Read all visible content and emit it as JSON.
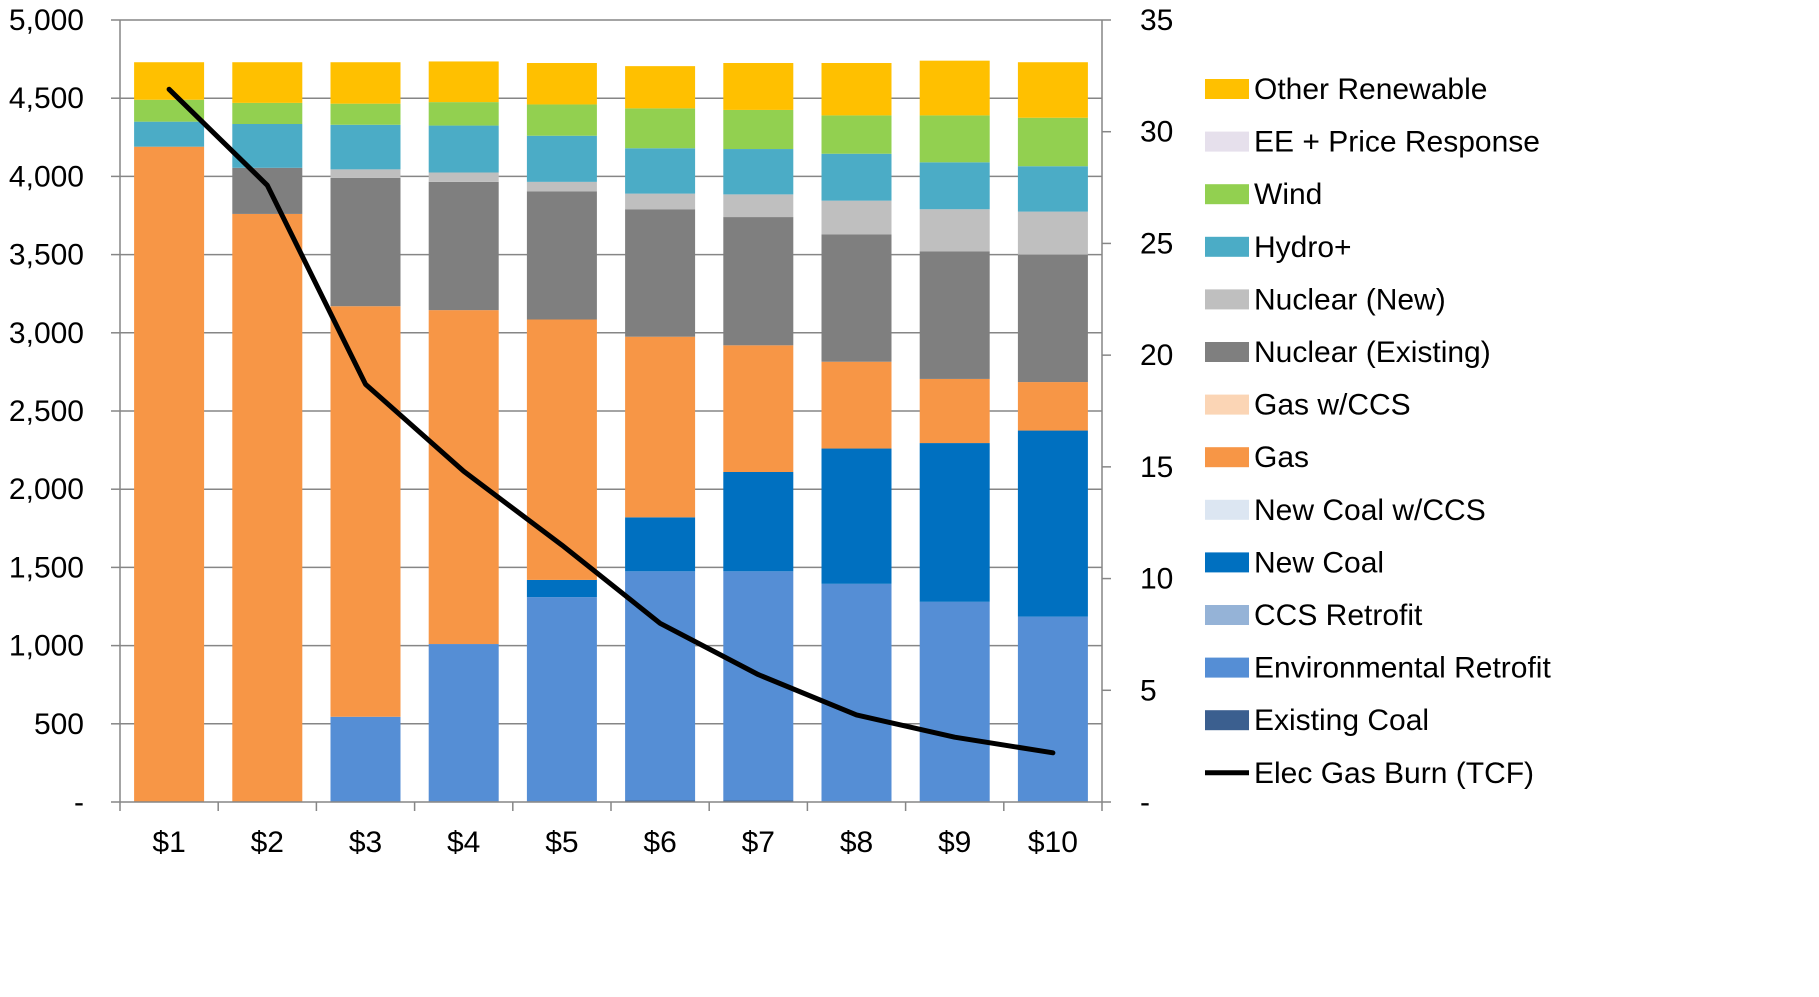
{
  "chart_data": {
    "type": "bar",
    "stacked": true,
    "categories": [
      "$1",
      "$2",
      "$3",
      "$4",
      "$5",
      "$6",
      "$7",
      "$8",
      "$9",
      "$10"
    ],
    "y_left": {
      "min": 0,
      "max": 5000,
      "ticks": [
        "-",
        "500",
        "1,000",
        "1,500",
        "2,000",
        "2,500",
        "3,000",
        "3,500",
        "4,000",
        "4,500",
        "5,000"
      ]
    },
    "y_right": {
      "min": 0,
      "max": 35,
      "ticks": [
        "-",
        "5",
        "10",
        "15",
        "20",
        "25",
        "30",
        "35"
      ]
    },
    "grid": true,
    "legend_position": "right",
    "series": [
      {
        "name": "Existing Coal",
        "color": "#3b5f8f",
        "values": [
          0,
          0,
          0,
          5,
          5,
          10,
          10,
          5,
          5,
          5
        ]
      },
      {
        "name": "Environmental Retrofit",
        "color": "#558ed5",
        "values": [
          0,
          0,
          545,
          1005,
          1305,
          1465,
          1465,
          1390,
          1275,
          1180
        ]
      },
      {
        "name": "CCS Retrofit",
        "color": "#95b3d7",
        "values": [
          0,
          0,
          0,
          0,
          0,
          0,
          0,
          0,
          0,
          0
        ]
      },
      {
        "name": "New Coal",
        "color": "#0070c0",
        "values": [
          0,
          0,
          0,
          0,
          110,
          345,
          635,
          865,
          1015,
          1190
        ]
      },
      {
        "name": "New Coal w/CCS",
        "color": "#dce6f2",
        "values": [
          0,
          0,
          0,
          0,
          0,
          0,
          0,
          0,
          0,
          0
        ]
      },
      {
        "name": "Gas",
        "color": "#f79646",
        "values": [
          4190,
          3760,
          2625,
          2135,
          1665,
          1155,
          810,
          555,
          410,
          310
        ]
      },
      {
        "name": "Gas w/CCS",
        "color": "#fbd5b5",
        "values": [
          0,
          0,
          0,
          0,
          0,
          0,
          0,
          0,
          0,
          0
        ]
      },
      {
        "name": "Nuclear (Existing)",
        "color": "#7f7f7f",
        "values": [
          0,
          295,
          820,
          820,
          820,
          815,
          820,
          815,
          815,
          815
        ]
      },
      {
        "name": "Nuclear (New)",
        "color": "#bfbfbf",
        "values": [
          0,
          0,
          55,
          60,
          60,
          100,
          145,
          215,
          270,
          275
        ]
      },
      {
        "name": "Hydro+",
        "color": "#4bacc6",
        "values": [
          160,
          280,
          285,
          300,
          295,
          290,
          290,
          300,
          300,
          290
        ]
      },
      {
        "name": "EE + Price Response",
        "color": "#e6e0ec",
        "values": [
          0,
          0,
          0,
          0,
          0,
          0,
          0,
          0,
          0,
          0
        ]
      },
      {
        "name": "Wind",
        "color": "#92d050",
        "values": [
          140,
          135,
          135,
          150,
          200,
          255,
          250,
          245,
          300,
          310
        ]
      },
      {
        "name": "Other Renewable",
        "color": "#ffc000",
        "values": [
          240,
          260,
          265,
          260,
          265,
          270,
          300,
          335,
          350,
          355
        ]
      }
    ],
    "line_series": {
      "name": "Elec Gas Burn (TCF)",
      "color": "#000000",
      "axis": "right",
      "values": [
        31.9,
        27.6,
        18.7,
        14.8,
        11.5,
        8.0,
        5.7,
        3.9,
        2.9,
        2.2
      ]
    },
    "legend_order": [
      "Other Renewable",
      "EE + Price Response",
      "Wind",
      "Hydro+",
      "Nuclear (New)",
      "Nuclear (Existing)",
      "Gas w/CCS",
      "Gas",
      "New Coal w/CCS",
      "New Coal",
      "CCS Retrofit",
      "Environmental Retrofit",
      "Existing Coal",
      "Elec Gas Burn (TCF)"
    ]
  }
}
